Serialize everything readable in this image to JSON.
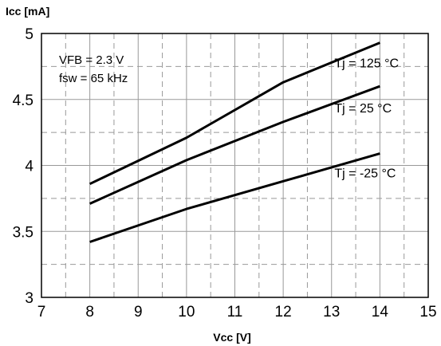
{
  "chart_data": {
    "type": "line",
    "xlabel": "Vcc [V]",
    "ylabel": "Icc [mA]",
    "xlim": [
      7,
      15
    ],
    "ylim": [
      3,
      5
    ],
    "xticks": [
      "7",
      "8",
      "9",
      "10",
      "11",
      "12",
      "13",
      "14",
      "15"
    ],
    "yticks": [
      "3",
      "3.5",
      "4",
      "4.5",
      "5"
    ],
    "grid": true,
    "annotations": [
      "VFB = 2.3 V",
      "fsw = 65 kHz"
    ],
    "series": [
      {
        "name": "Tj = 125 °C",
        "x": [
          8,
          10,
          12,
          14
        ],
        "y": [
          3.86,
          4.21,
          4.63,
          4.93
        ]
      },
      {
        "name": "Tj = 25 °C",
        "x": [
          8,
          10,
          12,
          14
        ],
        "y": [
          3.71,
          4.04,
          4.33,
          4.6
        ]
      },
      {
        "name": "Tj = -25 °C",
        "x": [
          8,
          10,
          12,
          14
        ],
        "y": [
          3.42,
          3.67,
          3.88,
          4.09
        ]
      }
    ]
  }
}
